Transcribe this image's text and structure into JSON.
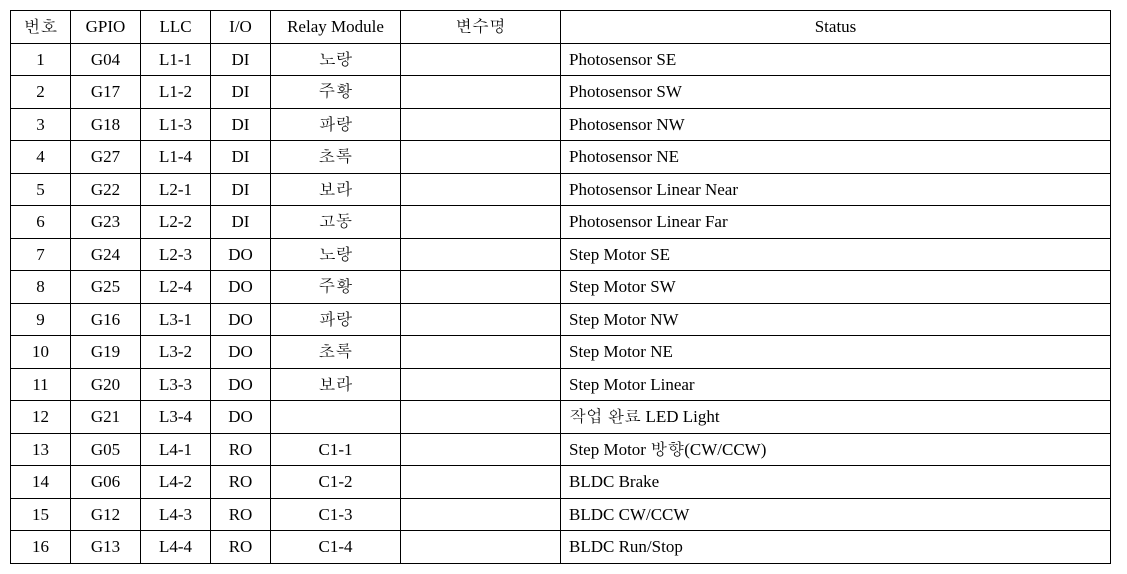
{
  "table": {
    "columns": [
      "번호",
      "GPIO",
      "LLC",
      "I/O",
      "Relay Module",
      "변수명",
      "Status"
    ],
    "column_align": [
      "center",
      "center",
      "center",
      "center",
      "center",
      "left",
      "left"
    ],
    "rows": [
      [
        "1",
        "G04",
        "L1-1",
        "DI",
        "노랑",
        "",
        "Photosensor SE"
      ],
      [
        "2",
        "G17",
        "L1-2",
        "DI",
        "주황",
        "",
        "Photosensor SW"
      ],
      [
        "3",
        "G18",
        "L1-3",
        "DI",
        "파랑",
        "",
        "Photosensor NW"
      ],
      [
        "4",
        "G27",
        "L1-4",
        "DI",
        "초록",
        "",
        "Photosensor NE"
      ],
      [
        "5",
        "G22",
        "L2-1",
        "DI",
        "보라",
        "",
        "Photosensor Linear Near"
      ],
      [
        "6",
        "G23",
        "L2-2",
        "DI",
        "고동",
        "",
        "Photosensor Linear Far"
      ],
      [
        "7",
        "G24",
        "L2-3",
        "DO",
        "노랑",
        "",
        "Step Motor SE"
      ],
      [
        "8",
        "G25",
        "L2-4",
        "DO",
        "주황",
        "",
        "Step Motor SW"
      ],
      [
        "9",
        "G16",
        "L3-1",
        "DO",
        "파랑",
        "",
        "Step Motor NW"
      ],
      [
        "10",
        "G19",
        "L3-2",
        "DO",
        "초록",
        "",
        "Step Motor NE"
      ],
      [
        "11",
        "G20",
        "L3-3",
        "DO",
        "보라",
        "",
        "Step Motor Linear"
      ],
      [
        "12",
        "G21",
        "L3-4",
        "DO",
        "",
        "",
        "작업 완료 LED Light"
      ],
      [
        "13",
        "G05",
        "L4-1",
        "RO",
        "C1-1",
        "",
        "Step Motor 방향(CW/CCW)"
      ],
      [
        "14",
        "G06",
        "L4-2",
        "RO",
        "C1-2",
        "",
        "BLDC Brake"
      ],
      [
        "15",
        "G12",
        "L4-3",
        "RO",
        "C1-3",
        "",
        "BLDC CW/CCW"
      ],
      [
        "16",
        "G13",
        "L4-4",
        "RO",
        "C1-4",
        "",
        "BLDC Run/Stop"
      ]
    ]
  }
}
